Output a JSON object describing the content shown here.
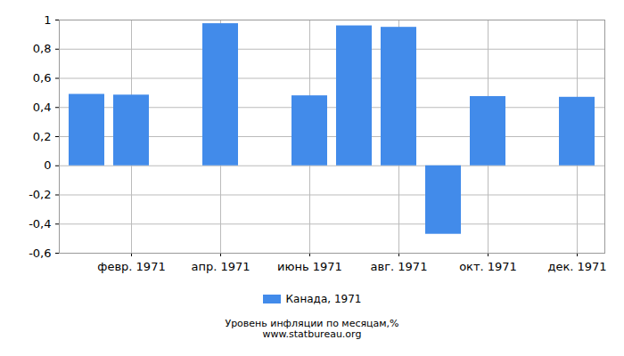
{
  "chart_data": {
    "type": "bar",
    "title": "Уровень инфляции по месяцам,%",
    "subtitle": "www.statbureau.org",
    "categories": [
      null,
      "февр. 1971",
      null,
      "апр. 1971",
      null,
      "июнь 1971",
      null,
      "авг. 1971",
      null,
      "окт. 1971",
      null,
      "дек. 1971"
    ],
    "series": [
      {
        "name": "Канада, 1971",
        "color": "#428bea",
        "values": [
          0.49,
          0.485,
          0,
          0.975,
          0,
          0.48,
          0.96,
          0.95,
          -0.47,
          0.475,
          0,
          0.47
        ]
      }
    ],
    "ylim": [
      -0.6,
      1
    ],
    "yticks": [
      {
        "value": -0.6,
        "label": "-0,6"
      },
      {
        "value": -0.4,
        "label": "-0,4"
      },
      {
        "value": -0.2,
        "label": "-0,2"
      },
      0,
      {
        "value": 0.2,
        "label": "0,2"
      },
      {
        "value": 0.4,
        "label": "0,4"
      },
      {
        "value": 0.6,
        "label": "0,6"
      },
      {
        "value": 0.8,
        "label": "0,8"
      },
      1
    ],
    "grid": true,
    "legend": "bottom"
  }
}
